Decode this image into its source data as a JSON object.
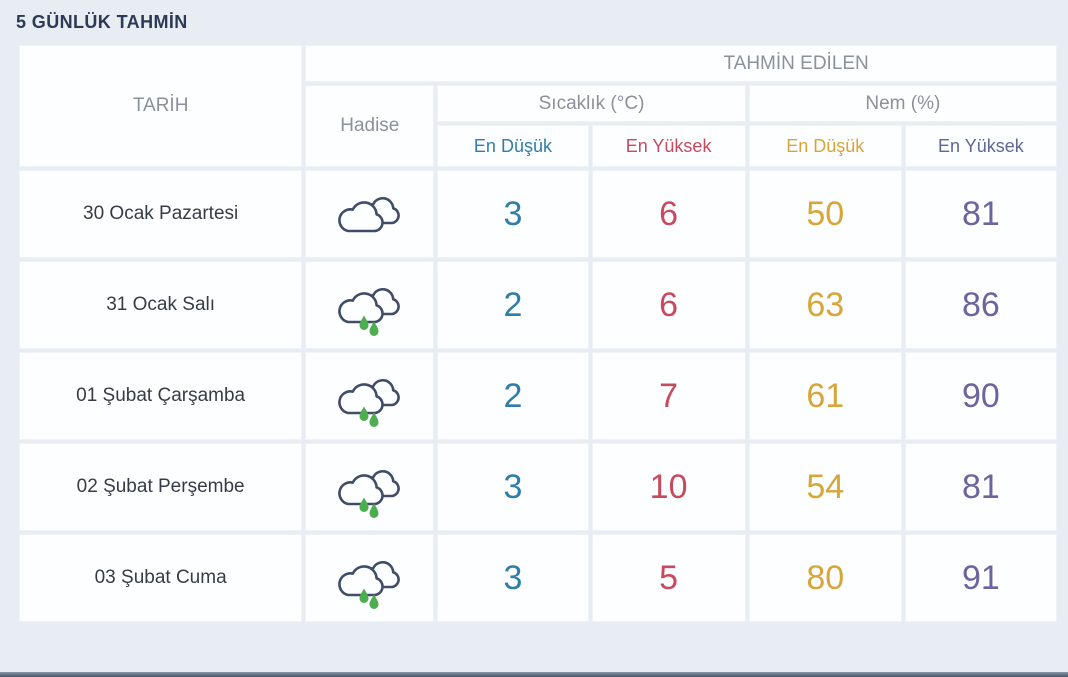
{
  "page": {
    "title": "5 GÜNLÜK TAHMİN"
  },
  "colors": {
    "background": "#e7edf2",
    "title_text": "#2d3a55",
    "header_gray": "#8b919b",
    "temp_min": "#2f7ea9",
    "temp_max": "#c74a5e",
    "hum_min": "#d8a538",
    "hum_max": "#6c639f",
    "cloud_outline": "#414d68",
    "raindrop_green": "#4cae4f"
  },
  "table": {
    "headers": {
      "date": "TARİH",
      "event": "Hadise",
      "predicted": "TAHMİN EDİLEN",
      "temperature_group": "Sıcaklık (°C)",
      "humidity_group": "Nem (%)",
      "temp_min": "En Düşük",
      "temp_max": "En Yüksek",
      "hum_min": "En Düşük",
      "hum_max": "En Yüksek"
    },
    "rows": [
      {
        "date": "30 Ocak Pazartesi",
        "icon": "cloudy-icon",
        "temp_min": "3",
        "temp_max": "6",
        "hum_min": "50",
        "hum_max": "81"
      },
      {
        "date": "31 Ocak Salı",
        "icon": "rainy-icon",
        "temp_min": "2",
        "temp_max": "6",
        "hum_min": "63",
        "hum_max": "86"
      },
      {
        "date": "01 Şubat Çarşamba",
        "icon": "rainy-icon",
        "temp_min": "2",
        "temp_max": "7",
        "hum_min": "61",
        "hum_max": "90"
      },
      {
        "date": "02 Şubat Perşembe",
        "icon": "rainy-icon",
        "temp_min": "3",
        "temp_max": "10",
        "hum_min": "54",
        "hum_max": "81"
      },
      {
        "date": "03 Şubat Cuma",
        "icon": "rainy-icon",
        "temp_min": "3",
        "temp_max": "5",
        "hum_min": "80",
        "hum_max": "91"
      }
    ]
  },
  "chart_data": {
    "type": "table",
    "title": "5 GÜNLÜK TAHMİN",
    "columns": [
      "TARİH",
      "Hadise",
      "Sıcaklık (°C) En Düşük",
      "Sıcaklık (°C) En Yüksek",
      "Nem (%) En Düşük",
      "Nem (%) En Yüksek"
    ],
    "rows": [
      [
        "30 Ocak Pazartesi",
        "bulutlu (cloudy)",
        3,
        6,
        50,
        81
      ],
      [
        "31 Ocak Salı",
        "yağmurlu (rainy)",
        2,
        6,
        63,
        86
      ],
      [
        "01 Şubat Çarşamba",
        "yağmurlu (rainy)",
        2,
        7,
        61,
        90
      ],
      [
        "02 Şubat Perşembe",
        "yağmurlu (rainy)",
        3,
        10,
        54,
        81
      ],
      [
        "03 Şubat Cuma",
        "yağmurlu (rainy)",
        3,
        5,
        80,
        91
      ]
    ]
  }
}
